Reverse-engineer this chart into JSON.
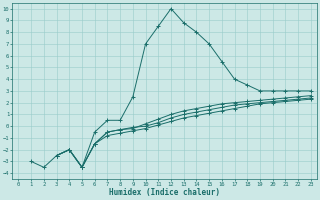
{
  "xlabel": "Humidex (Indice chaleur)",
  "background_color": "#cce8e6",
  "grid_color": "#99ccca",
  "line_color": "#1a6e6a",
  "xlim": [
    -0.5,
    23.5
  ],
  "ylim": [
    -4.5,
    10.5
  ],
  "xticks": [
    0,
    1,
    2,
    3,
    4,
    5,
    6,
    7,
    8,
    9,
    10,
    11,
    12,
    13,
    14,
    15,
    16,
    17,
    18,
    19,
    20,
    21,
    22,
    23
  ],
  "yticks": [
    -4,
    -3,
    -2,
    -1,
    0,
    1,
    2,
    3,
    4,
    5,
    6,
    7,
    8,
    9,
    10
  ],
  "series": [
    [
      1,
      -3,
      2,
      -3.5,
      3,
      -2.5,
      4,
      -2.0,
      5,
      -3.5,
      6,
      -0.5,
      7,
      0.5,
      8,
      0.5,
      9,
      2.5,
      10,
      7.0,
      11,
      8.5,
      12,
      10.0,
      13,
      8.8,
      14,
      8.0,
      15,
      7.0,
      16,
      5.5,
      17,
      4.0,
      18,
      3.5,
      19,
      3.0,
      20,
      3.0,
      21,
      3.0,
      22,
      3.0,
      23,
      3.0
    ],
    [
      3,
      -2.5,
      4,
      -2.0,
      5,
      -3.5,
      6,
      -1.5,
      7,
      -0.5,
      8,
      -0.3,
      9,
      -0.2,
      10,
      0.2,
      11,
      0.6,
      12,
      1.0,
      13,
      1.3,
      14,
      1.5,
      15,
      1.7,
      16,
      1.9,
      17,
      2.0,
      18,
      2.1,
      19,
      2.2,
      20,
      2.3,
      21,
      2.4,
      22,
      2.5,
      23,
      2.6
    ],
    [
      3,
      -2.5,
      4,
      -2.0,
      5,
      -3.5,
      6,
      -1.5,
      7,
      -0.5,
      8,
      -0.3,
      9,
      -0.1,
      10,
      0.0,
      11,
      0.3,
      12,
      0.7,
      13,
      1.0,
      14,
      1.2,
      15,
      1.4,
      16,
      1.6,
      17,
      1.8,
      18,
      1.9,
      19,
      2.0,
      20,
      2.1,
      21,
      2.2,
      22,
      2.3,
      23,
      2.4
    ],
    [
      3,
      -2.5,
      4,
      -2.0,
      5,
      -3.5,
      6,
      -1.5,
      7,
      -0.8,
      8,
      -0.6,
      9,
      -0.4,
      10,
      -0.2,
      11,
      0.1,
      12,
      0.4,
      13,
      0.7,
      14,
      0.9,
      15,
      1.1,
      16,
      1.3,
      17,
      1.5,
      18,
      1.7,
      19,
      1.9,
      20,
      2.0,
      21,
      2.1,
      22,
      2.2,
      23,
      2.3
    ]
  ]
}
